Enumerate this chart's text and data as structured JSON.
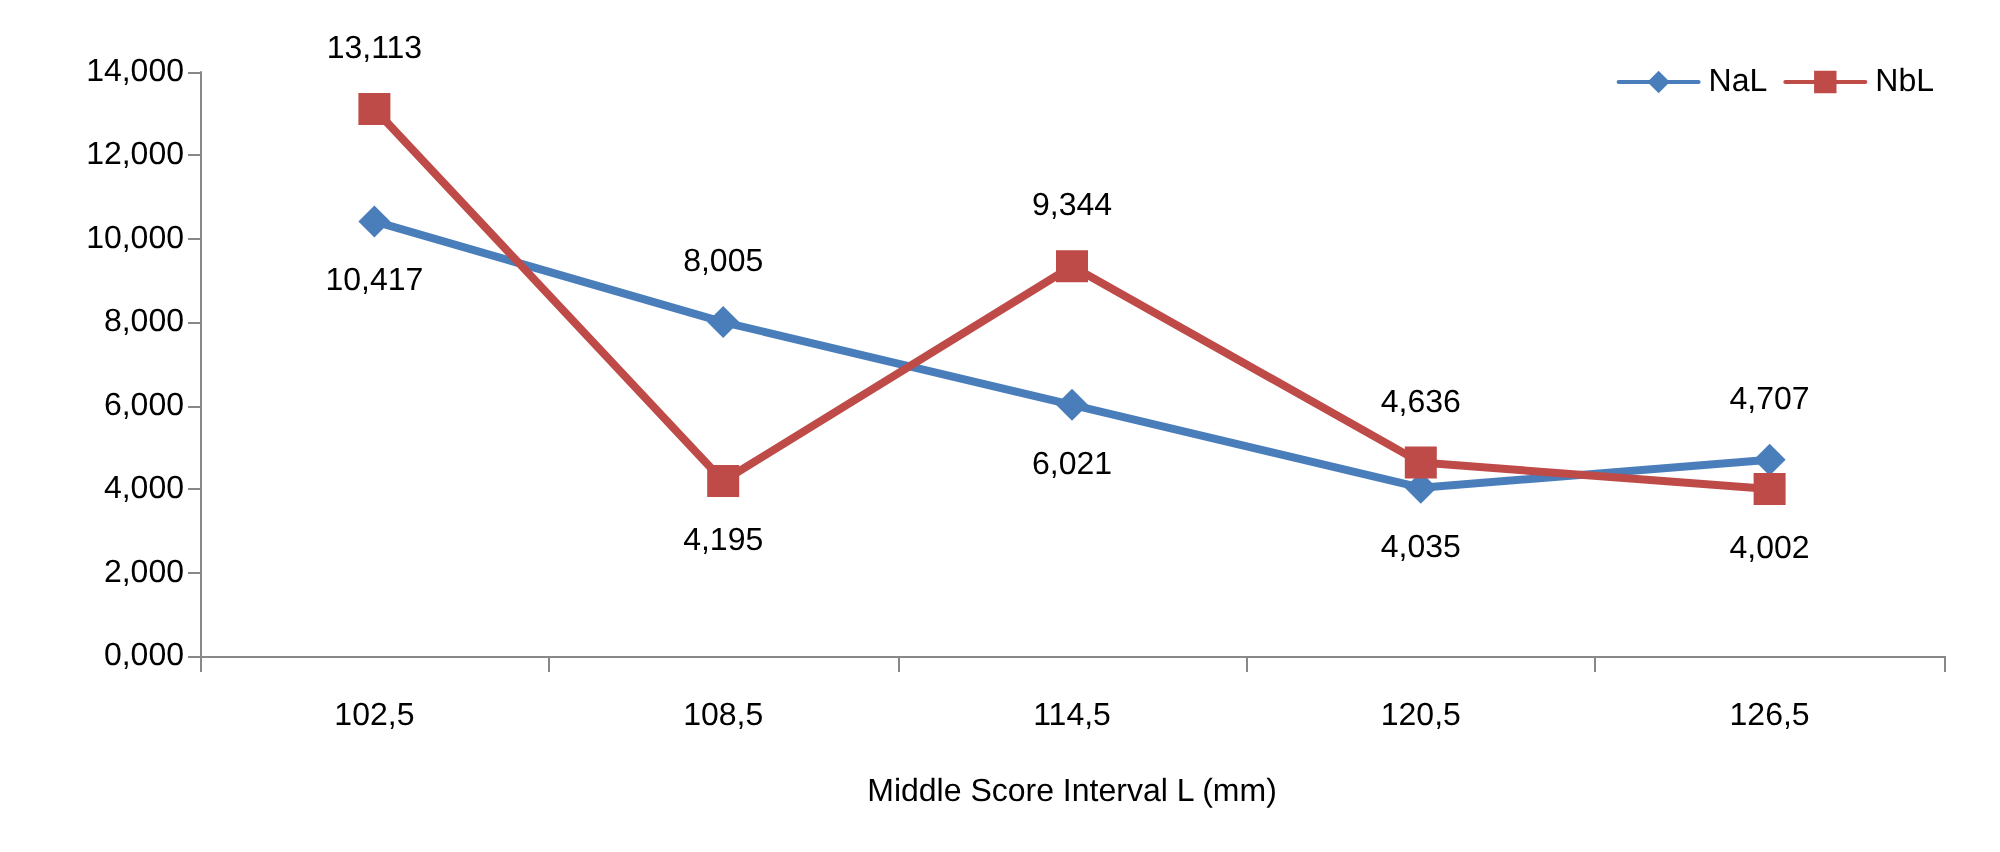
{
  "chart_data": {
    "type": "line",
    "xlabel": "Middle Score Interval L (mm)",
    "categories": [
      "102,5",
      "108,5",
      "114,5",
      "120,5",
      "126,5"
    ],
    "series": [
      {
        "name": "NaL",
        "color": "#4a7ebb",
        "marker": "diamond",
        "values": [
          10.417,
          8.005,
          6.021,
          4.035,
          4.707
        ],
        "value_labels": [
          "10,417",
          "8,005",
          "6,021",
          "4,035",
          "4,707"
        ]
      },
      {
        "name": "NbL",
        "color": "#be4b48",
        "marker": "square",
        "values": [
          13.113,
          4.195,
          9.344,
          4.636,
          4.002
        ],
        "value_labels": [
          "13,113",
          "4,195",
          "9,344",
          "4,636",
          "4,002"
        ]
      }
    ],
    "ylim": [
      0,
      14
    ],
    "yticks": [
      {
        "value": 0,
        "label": "0,000"
      },
      {
        "value": 2,
        "label": "2,000"
      },
      {
        "value": 4,
        "label": "4,000"
      },
      {
        "value": 6,
        "label": "6,000"
      },
      {
        "value": 8,
        "label": "8,000"
      },
      {
        "value": 10,
        "label": "10,000"
      },
      {
        "value": 12,
        "label": "12,000"
      },
      {
        "value": 14,
        "label": "14,000"
      }
    ],
    "grid": false,
    "legend": "top right",
    "line_style": "solid"
  }
}
